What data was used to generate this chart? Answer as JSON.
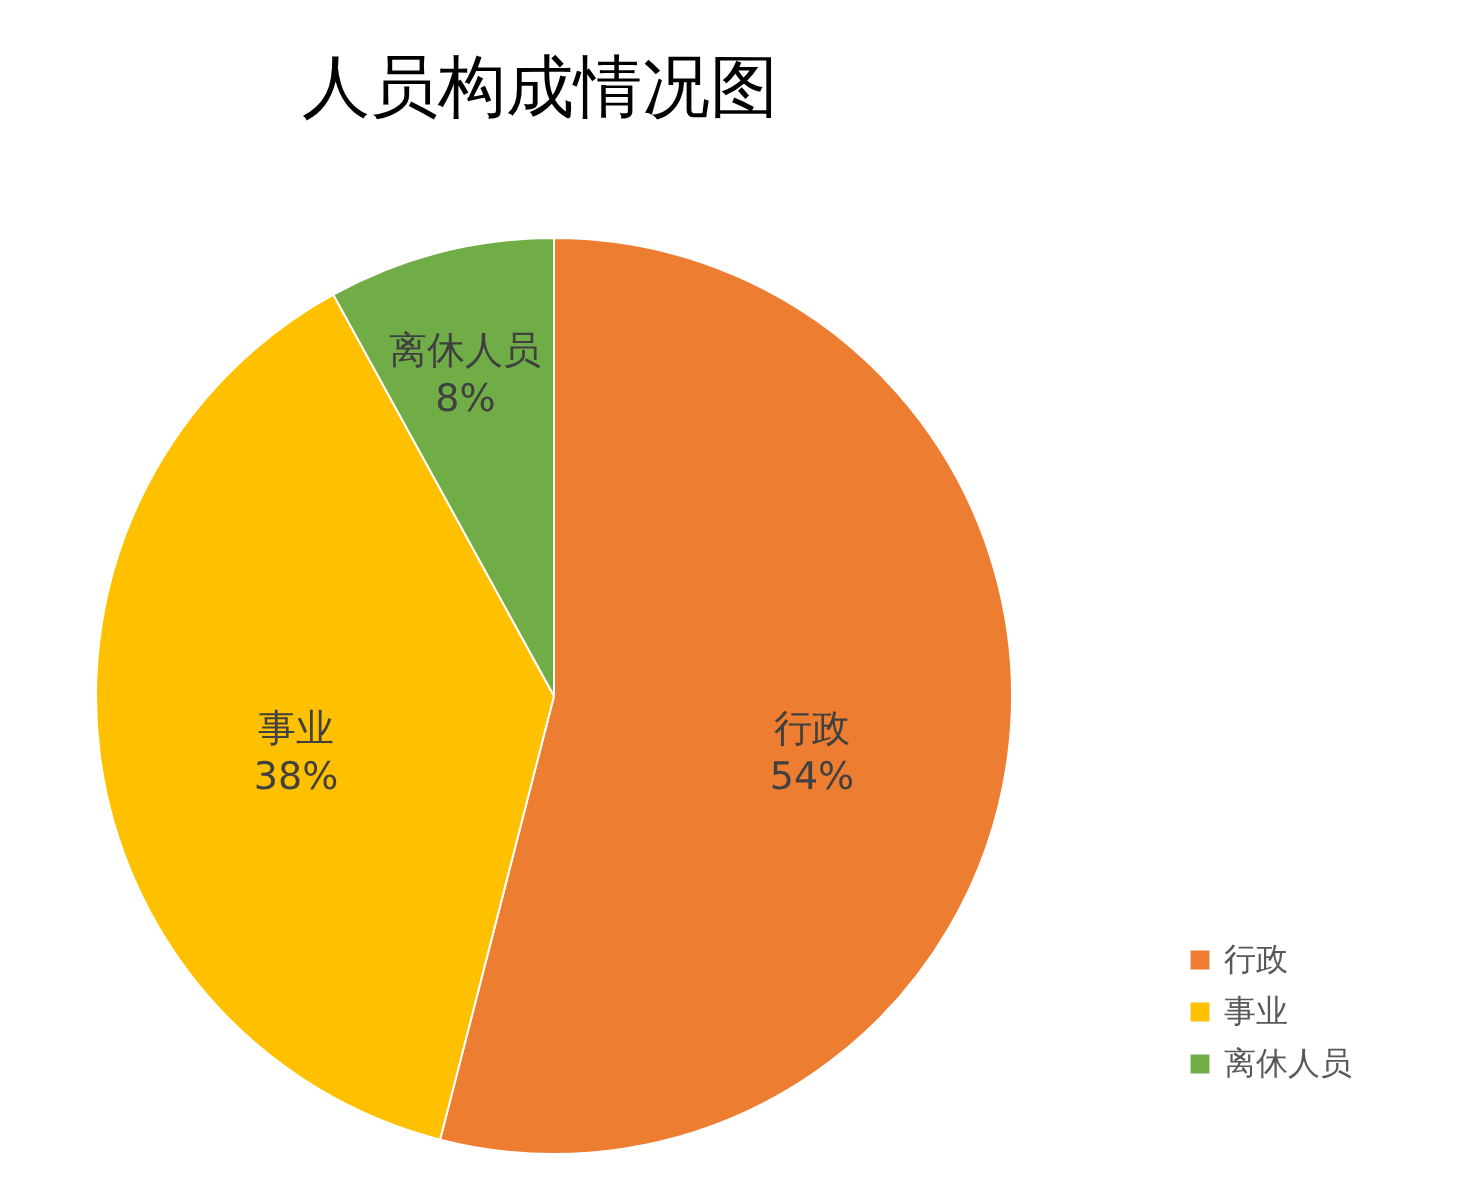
{
  "chart_data": {
    "type": "pie",
    "title": "人员构成情况图",
    "categories": [
      "行政",
      "事业",
      "离休人员"
    ],
    "values": [
      54,
      38,
      8
    ],
    "value_labels": [
      "54%",
      "38%",
      "8%"
    ],
    "colors": [
      "#ed7d31",
      "#ffc000",
      "#70ad47"
    ],
    "legend": "bottom right"
  }
}
